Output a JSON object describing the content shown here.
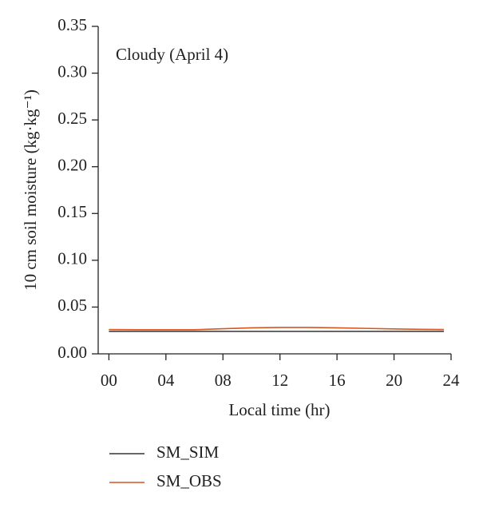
{
  "chart_data": {
    "type": "line",
    "annotation": "Cloudy (April 4)",
    "x_label": "Local time (hr)",
    "y_label": "10 cm soil moisture (kg·kg⁻¹)",
    "x": [
      0,
      2,
      4,
      6,
      8,
      10,
      12,
      14,
      16,
      18,
      20,
      22,
      23.5
    ],
    "series": [
      {
        "name": "SM_SIM",
        "color": "#333333",
        "values": [
          0.024,
          0.024,
          0.024,
          0.024,
          0.024,
          0.024,
          0.024,
          0.024,
          0.024,
          0.024,
          0.024,
          0.024,
          0.024
        ]
      },
      {
        "name": "SM_OBS",
        "color": "#d9541e",
        "values": [
          0.026,
          0.0258,
          0.0258,
          0.0258,
          0.0268,
          0.0278,
          0.0282,
          0.0282,
          0.0278,
          0.0272,
          0.0266,
          0.0262,
          0.026
        ]
      }
    ],
    "xlim": [
      -0.75,
      24
    ],
    "xticks": [
      {
        "value": 0,
        "label": "00"
      },
      {
        "value": 4,
        "label": "04"
      },
      {
        "value": 8,
        "label": "08"
      },
      12,
      16,
      20,
      24
    ],
    "ylim": [
      0,
      0.35
    ],
    "yticks": [
      {
        "value": 0,
        "label": "0.00"
      },
      0.05,
      {
        "value": 0.1,
        "label": "0.10"
      },
      0.15,
      {
        "value": 0.2,
        "label": "0.20"
      },
      0.25,
      {
        "value": 0.3,
        "label": "0.30"
      },
      0.35
    ],
    "legend": "bottom"
  }
}
